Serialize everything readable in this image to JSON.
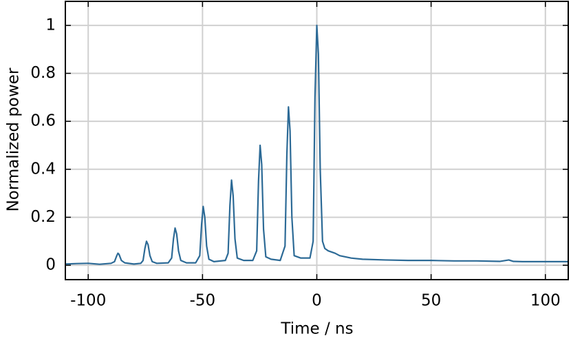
{
  "chart_data": {
    "type": "line",
    "xlabel": "Time / ns",
    "ylabel": "Normalized power",
    "color": "#2c6a96",
    "grid": true,
    "xlim": [
      -110,
      110
    ],
    "ylim": [
      -0.06,
      1.1
    ],
    "xticks": [
      -100,
      -50,
      0,
      50,
      100
    ],
    "yticks": [
      0,
      0.2,
      0.4,
      0.6,
      0.8,
      1
    ],
    "x": [
      -110,
      -105,
      -100,
      -95,
      -90,
      -88.5,
      -87.5,
      -87,
      -86.5,
      -85.5,
      -84,
      -80,
      -77,
      -76,
      -75.2,
      -74.5,
      -73.8,
      -73,
      -72,
      -70,
      -65,
      -63.5,
      -62.7,
      -62,
      -61.3,
      -60.5,
      -59.5,
      -57,
      -53,
      -51.2,
      -50.4,
      -49.7,
      -49,
      -48.2,
      -47.2,
      -45,
      -40,
      -38.8,
      -38,
      -37.3,
      -36.6,
      -35.8,
      -34.8,
      -32,
      -28,
      -26.3,
      -25.5,
      -24.8,
      -24.1,
      -23.3,
      -22.3,
      -20,
      -16,
      -13.9,
      -13.1,
      -12.4,
      -11.7,
      -10.9,
      -9.9,
      -7,
      -3,
      -1.6,
      -0.8,
      0,
      0.7,
      1.5,
      2.5,
      3.5,
      5,
      8,
      10,
      15,
      20,
      30,
      40,
      50,
      60,
      70,
      80,
      84,
      86,
      90,
      100,
      110
    ],
    "values": [
      0.005,
      0.007,
      0.008,
      0.004,
      0.008,
      0.015,
      0.04,
      0.05,
      0.045,
      0.02,
      0.01,
      0.005,
      0.008,
      0.02,
      0.07,
      0.1,
      0.085,
      0.04,
      0.015,
      0.008,
      0.01,
      0.03,
      0.11,
      0.155,
      0.13,
      0.06,
      0.02,
      0.01,
      0.01,
      0.04,
      0.17,
      0.245,
      0.2,
      0.08,
      0.025,
      0.015,
      0.02,
      0.05,
      0.25,
      0.355,
      0.29,
      0.11,
      0.03,
      0.02,
      0.02,
      0.06,
      0.35,
      0.5,
      0.42,
      0.15,
      0.035,
      0.025,
      0.02,
      0.08,
      0.46,
      0.66,
      0.56,
      0.2,
      0.04,
      0.03,
      0.03,
      0.1,
      0.7,
      1.0,
      0.88,
      0.4,
      0.1,
      0.07,
      0.06,
      0.05,
      0.04,
      0.03,
      0.025,
      0.022,
      0.02,
      0.02,
      0.018,
      0.018,
      0.016,
      0.022,
      0.016,
      0.015,
      0.015,
      0.015
    ]
  }
}
